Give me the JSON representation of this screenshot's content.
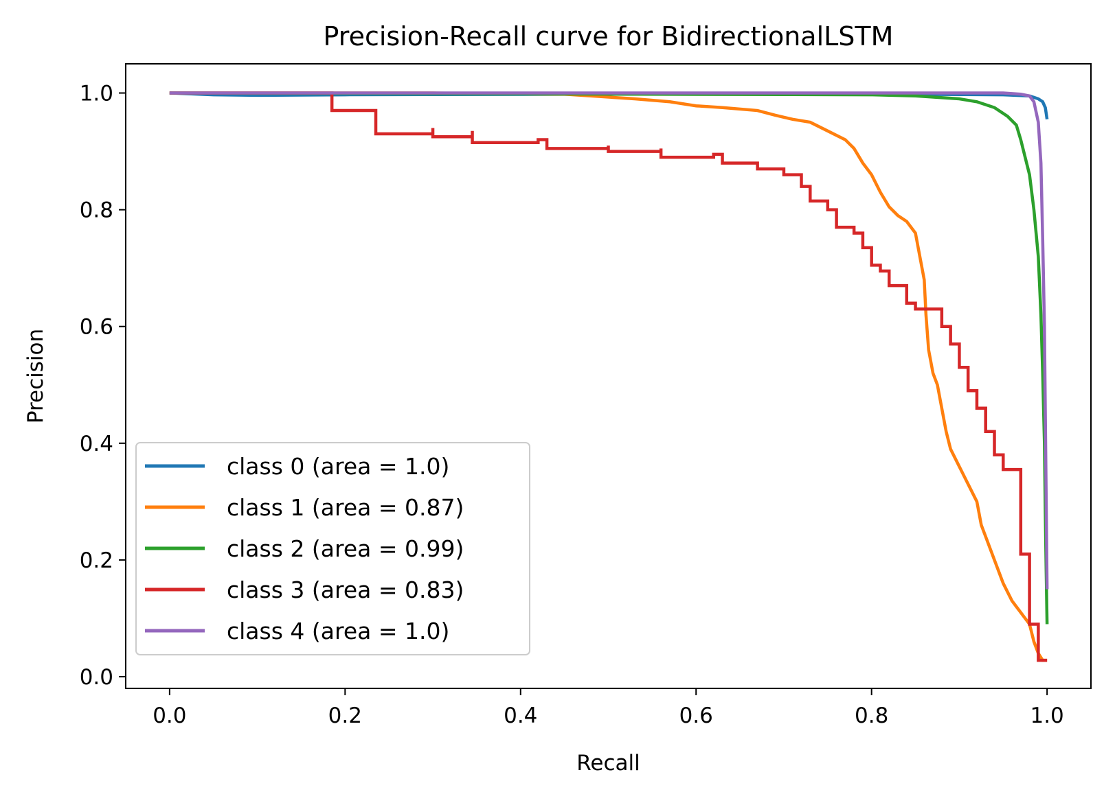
{
  "chart_data": {
    "type": "line",
    "title": "Precision-Recall curve for BidirectionalLSTM",
    "xlabel": "Recall",
    "ylabel": "Precision",
    "xlim": [
      -0.05,
      1.05
    ],
    "ylim": [
      -0.02,
      1.05
    ],
    "xticks": [
      "0.0",
      "0.2",
      "0.4",
      "0.6",
      "0.8",
      "1.0"
    ],
    "yticks": [
      "0.0",
      "0.2",
      "0.4",
      "0.6",
      "0.8",
      "1.0"
    ],
    "grid": false,
    "legend_position": "lower-left",
    "series": [
      {
        "name": "class 0 (area = 1.0)",
        "color": "#1f77b4",
        "step": false,
        "points": [
          [
            0.0,
            1.0
          ],
          [
            0.05,
            0.997
          ],
          [
            0.1,
            0.996
          ],
          [
            0.2,
            0.997
          ],
          [
            0.5,
            0.998
          ],
          [
            0.8,
            0.998
          ],
          [
            0.95,
            0.997
          ],
          [
            0.98,
            0.995
          ],
          [
            0.99,
            0.99
          ],
          [
            0.995,
            0.985
          ],
          [
            0.998,
            0.975
          ],
          [
            1.0,
            0.955
          ]
        ]
      },
      {
        "name": "class 1 (area = 0.87)",
        "color": "#ff7f0e",
        "step": false,
        "points": [
          [
            0.0,
            1.0
          ],
          [
            0.3,
            1.0
          ],
          [
            0.45,
            0.998
          ],
          [
            0.48,
            0.995
          ],
          [
            0.53,
            0.99
          ],
          [
            0.57,
            0.985
          ],
          [
            0.6,
            0.978
          ],
          [
            0.63,
            0.975
          ],
          [
            0.67,
            0.97
          ],
          [
            0.69,
            0.962
          ],
          [
            0.71,
            0.955
          ],
          [
            0.73,
            0.95
          ],
          [
            0.75,
            0.935
          ],
          [
            0.77,
            0.92
          ],
          [
            0.78,
            0.905
          ],
          [
            0.79,
            0.88
          ],
          [
            0.8,
            0.86
          ],
          [
            0.81,
            0.83
          ],
          [
            0.82,
            0.805
          ],
          [
            0.83,
            0.79
          ],
          [
            0.84,
            0.78
          ],
          [
            0.85,
            0.76
          ],
          [
            0.855,
            0.72
          ],
          [
            0.86,
            0.68
          ],
          [
            0.862,
            0.62
          ],
          [
            0.865,
            0.56
          ],
          [
            0.87,
            0.52
          ],
          [
            0.875,
            0.5
          ],
          [
            0.88,
            0.46
          ],
          [
            0.885,
            0.42
          ],
          [
            0.89,
            0.39
          ],
          [
            0.9,
            0.36
          ],
          [
            0.91,
            0.33
          ],
          [
            0.92,
            0.3
          ],
          [
            0.925,
            0.26
          ],
          [
            0.93,
            0.24
          ],
          [
            0.94,
            0.2
          ],
          [
            0.95,
            0.16
          ],
          [
            0.96,
            0.13
          ],
          [
            0.97,
            0.11
          ],
          [
            0.98,
            0.09
          ],
          [
            0.985,
            0.06
          ],
          [
            0.99,
            0.04
          ],
          [
            0.995,
            0.028
          ],
          [
            1.0,
            0.028
          ]
        ]
      },
      {
        "name": "class 2 (area = 0.99)",
        "color": "#2ca02c",
        "step": false,
        "points": [
          [
            0.0,
            1.0
          ],
          [
            0.8,
            0.997
          ],
          [
            0.85,
            0.995
          ],
          [
            0.9,
            0.99
          ],
          [
            0.92,
            0.985
          ],
          [
            0.94,
            0.975
          ],
          [
            0.955,
            0.96
          ],
          [
            0.965,
            0.945
          ],
          [
            0.97,
            0.92
          ],
          [
            0.975,
            0.89
          ],
          [
            0.98,
            0.86
          ],
          [
            0.985,
            0.8
          ],
          [
            0.99,
            0.72
          ],
          [
            0.993,
            0.62
          ],
          [
            0.995,
            0.52
          ],
          [
            0.997,
            0.4
          ],
          [
            0.998,
            0.28
          ],
          [
            0.999,
            0.18
          ],
          [
            1.0,
            0.09
          ]
        ]
      },
      {
        "name": "class 3 (area = 0.83)",
        "color": "#d62728",
        "step": true,
        "points": [
          [
            0.0,
            1.0
          ],
          [
            0.185,
            1.0
          ],
          [
            0.185,
            0.97
          ],
          [
            0.235,
            0.97
          ],
          [
            0.235,
            0.93
          ],
          [
            0.3,
            0.94
          ],
          [
            0.3,
            0.925
          ],
          [
            0.345,
            0.935
          ],
          [
            0.345,
            0.915
          ],
          [
            0.42,
            0.92
          ],
          [
            0.43,
            0.905
          ],
          [
            0.5,
            0.91
          ],
          [
            0.5,
            0.9
          ],
          [
            0.56,
            0.905
          ],
          [
            0.56,
            0.89
          ],
          [
            0.62,
            0.895
          ],
          [
            0.63,
            0.88
          ],
          [
            0.66,
            0.88
          ],
          [
            0.67,
            0.87
          ],
          [
            0.7,
            0.86
          ],
          [
            0.72,
            0.84
          ],
          [
            0.73,
            0.815
          ],
          [
            0.75,
            0.8
          ],
          [
            0.76,
            0.77
          ],
          [
            0.78,
            0.76
          ],
          [
            0.79,
            0.735
          ],
          [
            0.8,
            0.705
          ],
          [
            0.81,
            0.695
          ],
          [
            0.82,
            0.67
          ],
          [
            0.84,
            0.64
          ],
          [
            0.85,
            0.63
          ],
          [
            0.875,
            0.63
          ],
          [
            0.88,
            0.6
          ],
          [
            0.89,
            0.57
          ],
          [
            0.9,
            0.53
          ],
          [
            0.91,
            0.49
          ],
          [
            0.92,
            0.46
          ],
          [
            0.93,
            0.42
          ],
          [
            0.94,
            0.38
          ],
          [
            0.95,
            0.355
          ],
          [
            0.97,
            0.35
          ],
          [
            0.97,
            0.21
          ],
          [
            0.98,
            0.2
          ],
          [
            0.98,
            0.09
          ],
          [
            0.99,
            0.09
          ],
          [
            0.99,
            0.028
          ],
          [
            1.0,
            0.028
          ]
        ]
      },
      {
        "name": "class 4 (area = 1.0)",
        "color": "#9467bd",
        "step": false,
        "points": [
          [
            0.0,
            1.0
          ],
          [
            0.9,
            1.0
          ],
          [
            0.95,
            1.0
          ],
          [
            0.97,
            0.998
          ],
          [
            0.98,
            0.995
          ],
          [
            0.985,
            0.985
          ],
          [
            0.99,
            0.95
          ],
          [
            0.993,
            0.88
          ],
          [
            0.995,
            0.75
          ],
          [
            0.997,
            0.6
          ],
          [
            0.998,
            0.45
          ],
          [
            0.999,
            0.3
          ],
          [
            1.0,
            0.15
          ]
        ]
      }
    ]
  }
}
